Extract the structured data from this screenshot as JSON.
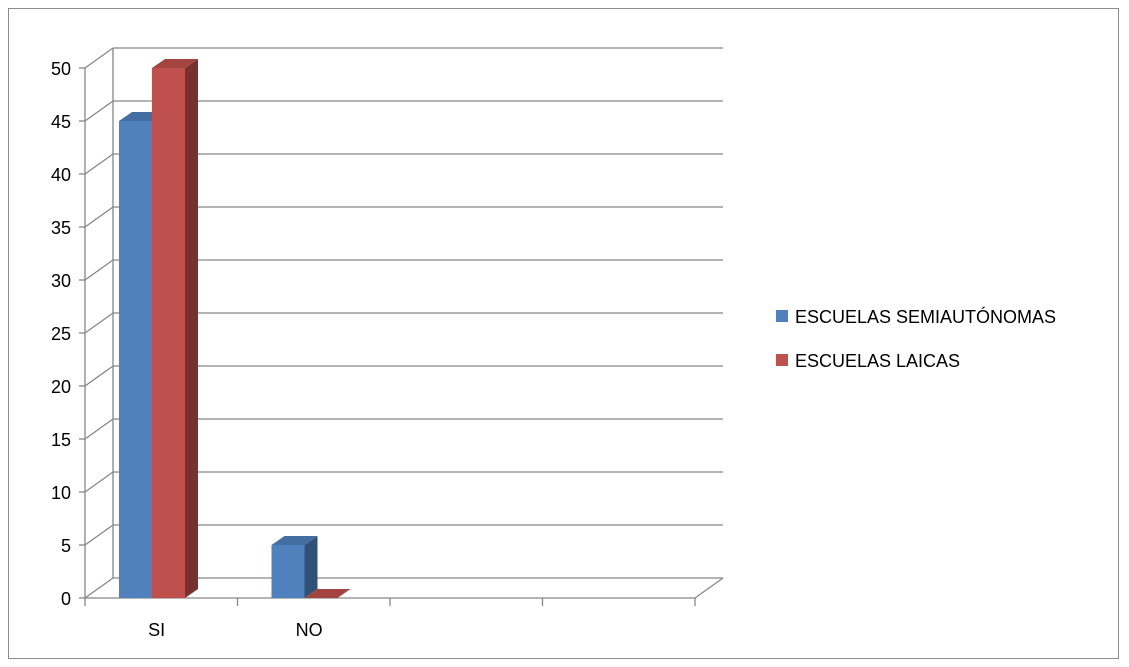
{
  "chart_data": {
    "type": "bar",
    "style": "3d-clustered-column",
    "categories": [
      "SI",
      "NO"
    ],
    "series": [
      {
        "name": "ESCUELAS SEMIAUTÓNOMAS",
        "values": [
          45,
          5
        ],
        "color": "#4f81bd"
      },
      {
        "name": "ESCUELAS LAICAS",
        "values": [
          50,
          0
        ],
        "color": "#c0504d"
      }
    ],
    "ylim": [
      0,
      50
    ],
    "yticks": [
      0,
      5,
      10,
      15,
      20,
      25,
      30,
      35,
      40,
      45,
      50
    ],
    "grid": true,
    "legend": "right"
  }
}
